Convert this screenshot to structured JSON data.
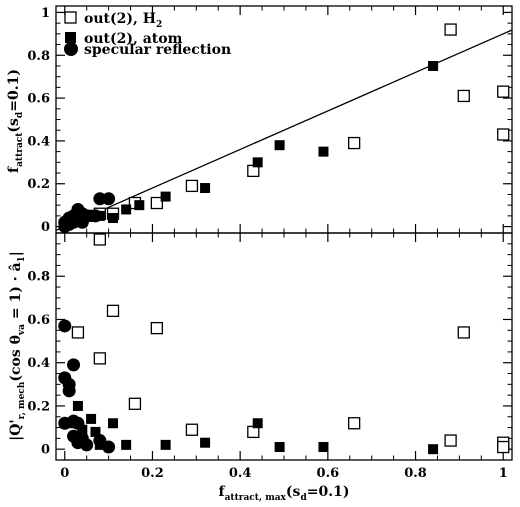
{
  "chart_data": [
    {
      "type": "scatter",
      "panel": "top",
      "ylabel": "f_attract(s_d=0.1)",
      "xlim": [
        -0.02,
        1.02
      ],
      "ylim": [
        -0.03,
        1.03
      ],
      "yticks": [
        0,
        0.2,
        0.4,
        0.6,
        0.8,
        1
      ],
      "ytick_labels": [
        "0",
        "0.2",
        "0.4",
        "0.6",
        "0.8",
        "1"
      ],
      "reference_line": {
        "slope": 0.9,
        "intercept": 0
      },
      "legend_position": "top-left",
      "legend": [
        {
          "label": "out(2), H",
          "subscript": "2",
          "marker": "open-square"
        },
        {
          "label": "out(2), atom",
          "marker": "filled-square"
        },
        {
          "label": "specular reflection",
          "marker": "filled-circle"
        }
      ],
      "series": [
        {
          "name": "out(2), H2",
          "marker": "open-square",
          "points": [
            [
              0.01,
              0.02
            ],
            [
              0.03,
              0.03
            ],
            [
              0.05,
              0.05
            ],
            [
              0.08,
              0.06
            ],
            [
              0.11,
              0.06
            ],
            [
              0.16,
              0.11
            ],
            [
              0.21,
              0.11
            ],
            [
              0.29,
              0.19
            ],
            [
              0.43,
              0.26
            ],
            [
              0.66,
              0.39
            ],
            [
              0.88,
              0.92
            ],
            [
              0.91,
              0.61
            ],
            [
              1.0,
              0.63
            ],
            [
              1.0,
              0.43
            ]
          ]
        },
        {
          "name": "out(2), atom",
          "marker": "filled-square",
          "points": [
            [
              0.02,
              0.02
            ],
            [
              0.04,
              0.03
            ],
            [
              0.08,
              0.05
            ],
            [
              0.11,
              0.04
            ],
            [
              0.14,
              0.08
            ],
            [
              0.17,
              0.1
            ],
            [
              0.23,
              0.14
            ],
            [
              0.32,
              0.18
            ],
            [
              0.44,
              0.3
            ],
            [
              0.49,
              0.38
            ],
            [
              0.59,
              0.35
            ],
            [
              0.84,
              0.75
            ]
          ]
        },
        {
          "name": "specular reflection",
          "marker": "filled-circle",
          "points": [
            [
              0.0,
              0.0
            ],
            [
              0.0,
              0.02
            ],
            [
              0.01,
              0.04
            ],
            [
              0.01,
              0.01
            ],
            [
              0.02,
              0.05
            ],
            [
              0.02,
              0.02
            ],
            [
              0.03,
              0.08
            ],
            [
              0.04,
              0.06
            ],
            [
              0.05,
              0.05
            ],
            [
              0.04,
              0.02
            ],
            [
              0.07,
              0.05
            ],
            [
              0.08,
              0.13
            ],
            [
              0.1,
              0.13
            ]
          ]
        }
      ]
    },
    {
      "type": "scatter",
      "panel": "bottom",
      "xlabel": "f_attract, max(s_d=0.1)",
      "ylabel": "|Q'_r, mech(cos θ_va = 1) · â_1|",
      "xlim": [
        -0.02,
        1.02
      ],
      "ylim": [
        -0.05,
        1.0
      ],
      "xticks": [
        0,
        0.2,
        0.4,
        0.6,
        0.8,
        1
      ],
      "xtick_labels": [
        "0",
        "0.2",
        "0.4",
        "0.6",
        "0.8",
        "1"
      ],
      "yticks": [
        0,
        0.2,
        0.4,
        0.6,
        0.8
      ],
      "ytick_labels": [
        "0",
        "0.2",
        "0.4",
        "0.6",
        "0.8"
      ],
      "series": [
        {
          "name": "out(2), H2",
          "marker": "open-square",
          "points": [
            [
              0.03,
              0.54
            ],
            [
              0.08,
              0.97
            ],
            [
              0.08,
              0.42
            ],
            [
              0.11,
              0.64
            ],
            [
              0.16,
              0.21
            ],
            [
              0.21,
              0.56
            ],
            [
              0.29,
              0.09
            ],
            [
              0.43,
              0.08
            ],
            [
              0.66,
              0.12
            ],
            [
              0.88,
              0.04
            ],
            [
              0.91,
              0.54
            ],
            [
              1.0,
              0.03
            ],
            [
              1.0,
              0.01
            ]
          ]
        },
        {
          "name": "out(2), atom",
          "marker": "filled-square",
          "points": [
            [
              0.02,
              0.12
            ],
            [
              0.03,
              0.2
            ],
            [
              0.04,
              0.09
            ],
            [
              0.06,
              0.14
            ],
            [
              0.07,
              0.08
            ],
            [
              0.08,
              0.02
            ],
            [
              0.11,
              0.12
            ],
            [
              0.14,
              0.02
            ],
            [
              0.23,
              0.02
            ],
            [
              0.32,
              0.03
            ],
            [
              0.44,
              0.12
            ],
            [
              0.49,
              0.01
            ],
            [
              0.59,
              0.01
            ],
            [
              0.84,
              0.0
            ]
          ]
        },
        {
          "name": "specular reflection",
          "marker": "filled-circle",
          "points": [
            [
              0.0,
              0.57
            ],
            [
              0.0,
              0.33
            ],
            [
              0.01,
              0.3
            ],
            [
              0.01,
              0.27
            ],
            [
              0.02,
              0.39
            ],
            [
              0.0,
              0.12
            ],
            [
              0.02,
              0.13
            ],
            [
              0.03,
              0.12
            ],
            [
              0.02,
              0.06
            ],
            [
              0.04,
              0.05
            ],
            [
              0.03,
              0.03
            ],
            [
              0.05,
              0.02
            ],
            [
              0.08,
              0.04
            ],
            [
              0.1,
              0.01
            ]
          ]
        }
      ]
    }
  ]
}
